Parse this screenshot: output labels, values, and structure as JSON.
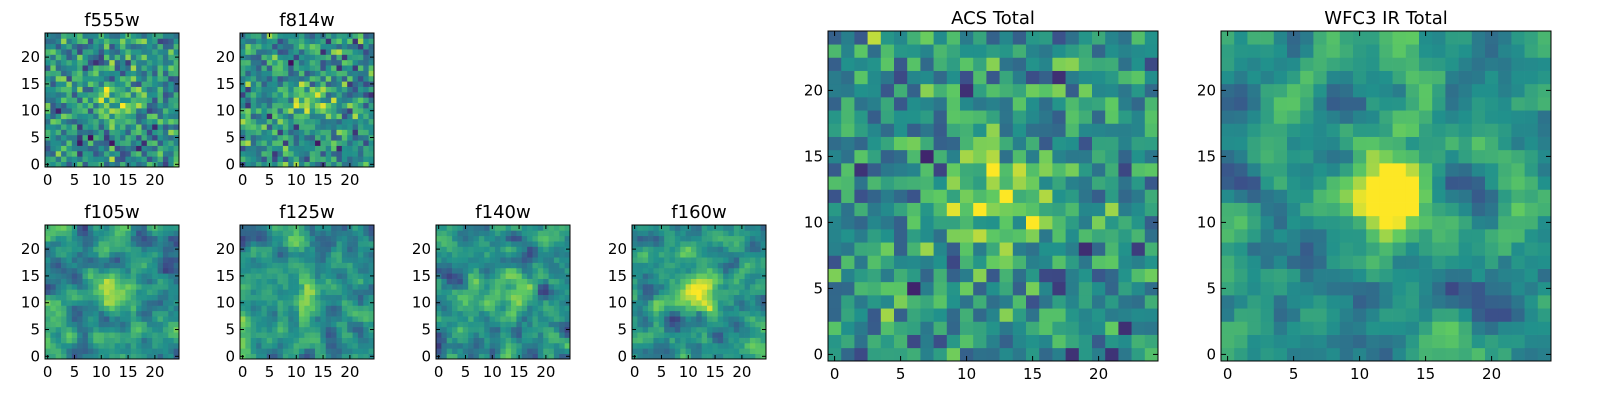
{
  "figure": {
    "colormap": "viridis",
    "colors": [
      "#440154",
      "#3b528b",
      "#21918c",
      "#5ec962",
      "#fde725"
    ]
  },
  "chart_data": [
    {
      "id": "f555w",
      "type": "heatmap",
      "title": "f555w",
      "grid_size": 25,
      "seed": 11,
      "smooth": 0,
      "blob": 0.55,
      "x_ticks": [
        0,
        5,
        10,
        15,
        20
      ],
      "y_ticks": [
        0,
        5,
        10,
        15,
        20
      ],
      "xlim": [
        0,
        25
      ],
      "ylim": [
        0,
        25
      ]
    },
    {
      "id": "f814w",
      "type": "heatmap",
      "title": "f814w",
      "grid_size": 25,
      "seed": 23,
      "smooth": 0,
      "blob": 0.7,
      "x_ticks": [
        0,
        5,
        10,
        15,
        20
      ],
      "y_ticks": [
        0,
        5,
        10,
        15,
        20
      ],
      "xlim": [
        0,
        25
      ],
      "ylim": [
        0,
        25
      ]
    },
    {
      "id": "f105w",
      "type": "heatmap",
      "title": "f105w",
      "grid_size": 25,
      "seed": 37,
      "smooth": 1,
      "blob": 0.5,
      "x_ticks": [
        0,
        5,
        10,
        15,
        20
      ],
      "y_ticks": [
        0,
        5,
        10,
        15,
        20
      ],
      "xlim": [
        0,
        25
      ],
      "ylim": [
        0,
        25
      ]
    },
    {
      "id": "f125w",
      "type": "heatmap",
      "title": "f125w",
      "grid_size": 25,
      "seed": 41,
      "smooth": 1,
      "blob": 0.6,
      "x_ticks": [
        0,
        5,
        10,
        15,
        20
      ],
      "y_ticks": [
        0,
        5,
        10,
        15,
        20
      ],
      "xlim": [
        0,
        25
      ],
      "ylim": [
        0,
        25
      ]
    },
    {
      "id": "f140w",
      "type": "heatmap",
      "title": "f140w",
      "grid_size": 25,
      "seed": 53,
      "smooth": 1,
      "blob": 0.5,
      "x_ticks": [
        0,
        5,
        10,
        15,
        20
      ],
      "y_ticks": [
        0,
        5,
        10,
        15,
        20
      ],
      "xlim": [
        0,
        25
      ],
      "ylim": [
        0,
        25
      ]
    },
    {
      "id": "f160w",
      "type": "heatmap",
      "title": "f160w",
      "grid_size": 25,
      "seed": 67,
      "smooth": 1,
      "blob": 1.1,
      "x_ticks": [
        0,
        5,
        10,
        15,
        20
      ],
      "y_ticks": [
        0,
        5,
        10,
        15,
        20
      ],
      "xlim": [
        0,
        25
      ],
      "ylim": [
        0,
        25
      ]
    },
    {
      "id": "acs-total",
      "type": "heatmap",
      "title": "ACS Total",
      "grid_size": 25,
      "seed": 79,
      "smooth": 0,
      "blob": 0.9,
      "x_ticks": [
        0,
        5,
        10,
        15,
        20
      ],
      "y_ticks": [
        0,
        5,
        10,
        15,
        20
      ],
      "xlim": [
        0,
        25
      ],
      "ylim": [
        0,
        25
      ]
    },
    {
      "id": "wfc3-ir-total",
      "type": "heatmap",
      "title": "WFC3 IR Total",
      "grid_size": 25,
      "seed": 97,
      "smooth": 1,
      "blob": 1.6,
      "x_ticks": [
        0,
        5,
        10,
        15,
        20
      ],
      "y_ticks": [
        0,
        5,
        10,
        15,
        20
      ],
      "xlim": [
        0,
        25
      ],
      "ylim": [
        0,
        25
      ]
    }
  ]
}
